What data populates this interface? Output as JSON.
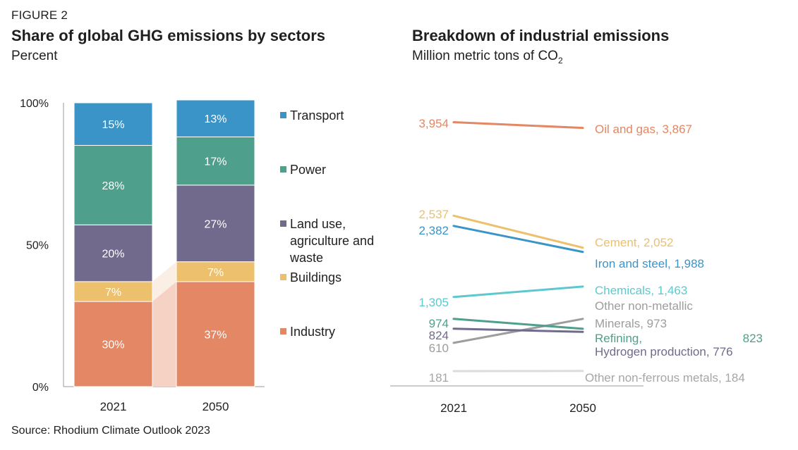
{
  "figure_label": "FIGURE 2",
  "source": "Source: Rhodium Climate Outlook 2023",
  "colors": {
    "transport": "#3a94c7",
    "power": "#4e9f8b",
    "land_use": "#716a8c",
    "buildings": "#ecc06c",
    "industry": "#e38764",
    "connector": "#f5d2c4",
    "axis": "#9a9a9a"
  },
  "chart_data": [
    {
      "type": "bar",
      "stacked": true,
      "title": "Share of global GHG emissions by sectors",
      "ylabel": "Percent",
      "ylim": [
        0,
        100
      ],
      "y_ticks": [
        "0%",
        "50%",
        "100%"
      ],
      "categories": [
        "2021",
        "2050"
      ],
      "series": [
        {
          "name": "Industry",
          "values": [
            30,
            37
          ],
          "labels": [
            "30%",
            "37%"
          ],
          "color": "#e38764"
        },
        {
          "name": "Buildings",
          "values": [
            7,
            7
          ],
          "labels": [
            "7%",
            "7%"
          ],
          "color": "#ecc06c"
        },
        {
          "name": "Land use, agriculture and waste",
          "legend_lines": [
            "Land use,",
            "agriculture and",
            "waste"
          ],
          "values": [
            20,
            27
          ],
          "labels": [
            "20%",
            "27%"
          ],
          "color": "#716a8c"
        },
        {
          "name": "Power",
          "values": [
            28,
            17
          ],
          "labels": [
            "28%",
            "17%"
          ],
          "color": "#4e9f8b"
        },
        {
          "name": "Transport",
          "values": [
            15,
            13
          ],
          "labels": [
            "15%",
            "13%"
          ],
          "color": "#3a94c7"
        }
      ],
      "legend_order": [
        "Transport",
        "Power",
        "Land use, agriculture and waste",
        "Buildings",
        "Industry"
      ],
      "legend_position": "right",
      "grid": false
    },
    {
      "type": "line",
      "title": "Breakdown of industrial emissions",
      "ylabel": "Million metric tons of CO",
      "ylabel_sub": "2",
      "x": [
        "2021",
        "2050"
      ],
      "ylim": [
        0,
        4200
      ],
      "grid": false,
      "series": [
        {
          "name": "Oil and gas",
          "values": [
            3954,
            3867
          ],
          "start_label": "3,954",
          "end_lines": [
            "Oil and gas, 3,867"
          ],
          "color": "#e38764",
          "width": 3
        },
        {
          "name": "Cement",
          "values": [
            2537,
            2052
          ],
          "start_label": "2,537",
          "end_lines": [
            "Cement, 2,052"
          ],
          "color": "#ecc06c",
          "width": 3
        },
        {
          "name": "Iron and steel",
          "values": [
            2382,
            1988
          ],
          "start_label": "2,382",
          "end_lines": [
            "Iron and steel, 1,988"
          ],
          "color": "#3a94c7",
          "width": 3
        },
        {
          "name": "Chemicals",
          "values": [
            1305,
            1463
          ],
          "start_label": "1,305",
          "end_lines": [
            "Chemicals, 1,463"
          ],
          "color": "#5ec8cf",
          "width": 3
        },
        {
          "name": "Other non-metallic Minerals",
          "values": [
            610,
            973
          ],
          "start_label": "610",
          "end_lines": [
            "Other non-metallic",
            "Minerals, 973"
          ],
          "color": "#9d9d9d",
          "width": 3
        },
        {
          "name": "Refining",
          "values": [
            974,
            823
          ],
          "start_label": "974",
          "end_lines": [
            "Refining,"
          ],
          "end_value_right": "823",
          "color": "#4e9f8b",
          "width": 3
        },
        {
          "name": "Hydrogen production",
          "values": [
            824,
            776
          ],
          "start_label": "824",
          "end_lines": [
            "Hydrogen production, 776"
          ],
          "color": "#716a8c",
          "width": 3
        },
        {
          "name": "Other non-ferrous metals",
          "values": [
            181,
            184
          ],
          "start_label": "181",
          "end_lines": [
            "Other non-ferrous metals, 184"
          ],
          "color": "#dcdcdc",
          "label_color": "#a6a6a6",
          "width": 3
        }
      ]
    }
  ]
}
